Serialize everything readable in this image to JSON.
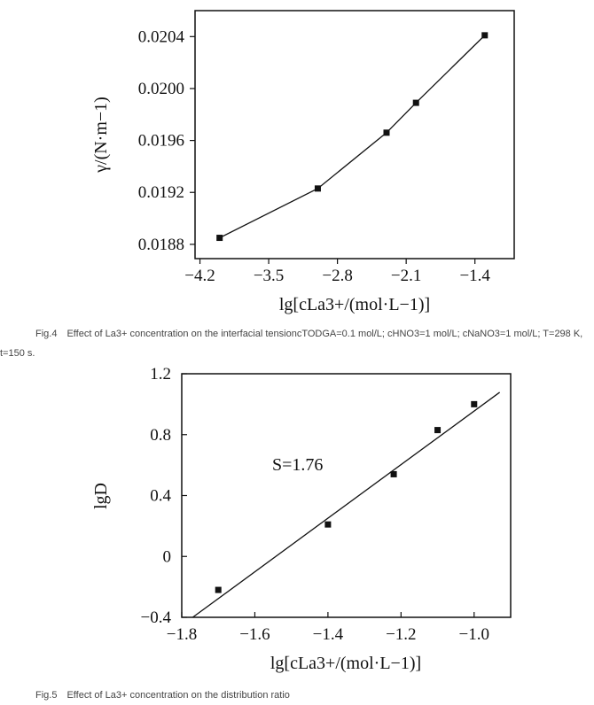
{
  "chart_data": [
    {
      "type": "line",
      "xlabel": "lg[cLa3+/(mol·L−1)]",
      "ylabel": "γ/(N·m−1)",
      "xlim": [
        -4.25,
        -1.0
      ],
      "ylim": [
        0.01869,
        0.0206
      ],
      "xticks": [
        -4.2,
        -3.5,
        -2.8,
        -2.1,
        -1.4
      ],
      "xtick_labels": [
        "−4.2",
        "−3.5",
        "−2.8",
        "−2.1",
        "−1.4"
      ],
      "yticks": [
        0.0188,
        0.0192,
        0.0196,
        0.02,
        0.0204
      ],
      "ytick_labels": [
        "0.0188",
        "0.0192",
        "0.0196",
        "0.0200",
        "0.0204"
      ],
      "grid": false,
      "marker": "square",
      "series": [
        {
          "x": [
            -4.0,
            -3.0,
            -2.3,
            -2.0,
            -1.3
          ],
          "y": [
            0.01885,
            0.01923,
            0.01966,
            0.01989,
            0.02041
          ]
        }
      ],
      "caption": "Fig.4　Effect of La3+ concentration on the interfacial tensioncTODGA=0.1 mol/L; cHNO3=1 mol/L; cNaNO3=1 mol/L; T=298 K, t=150 s."
    },
    {
      "type": "scatter",
      "xlabel": "lg[cLa3+/(mol·L−1)]",
      "ylabel": "lgD",
      "xlim": [
        -1.8,
        -0.9
      ],
      "ylim": [
        -0.4,
        1.2
      ],
      "xticks": [
        -1.8,
        -1.6,
        -1.4,
        -1.2,
        -1.0
      ],
      "xtick_labels": [
        "−1.8",
        "−1.6",
        "−1.4",
        "−1.2",
        "−1.0"
      ],
      "yticks": [
        -0.4,
        0,
        0.4,
        0.8,
        1.2
      ],
      "ytick_labels": [
        "−0.4",
        "0",
        "0.4",
        "0.8",
        "1.2"
      ],
      "grid": false,
      "marker": "square",
      "series": [
        {
          "x": [
            -1.7,
            -1.4,
            -1.22,
            -1.1,
            -1.0
          ],
          "y": [
            -0.22,
            0.21,
            0.54,
            0.83,
            1.0
          ]
        }
      ],
      "fit_line": {
        "slope": 1.76,
        "intercept": 2.715,
        "x_range": [
          -1.77,
          -0.93
        ]
      },
      "annotation": "S=1.76",
      "caption": "Fig.5　Effect of La3+ concentration on the distribution ratio"
    }
  ]
}
